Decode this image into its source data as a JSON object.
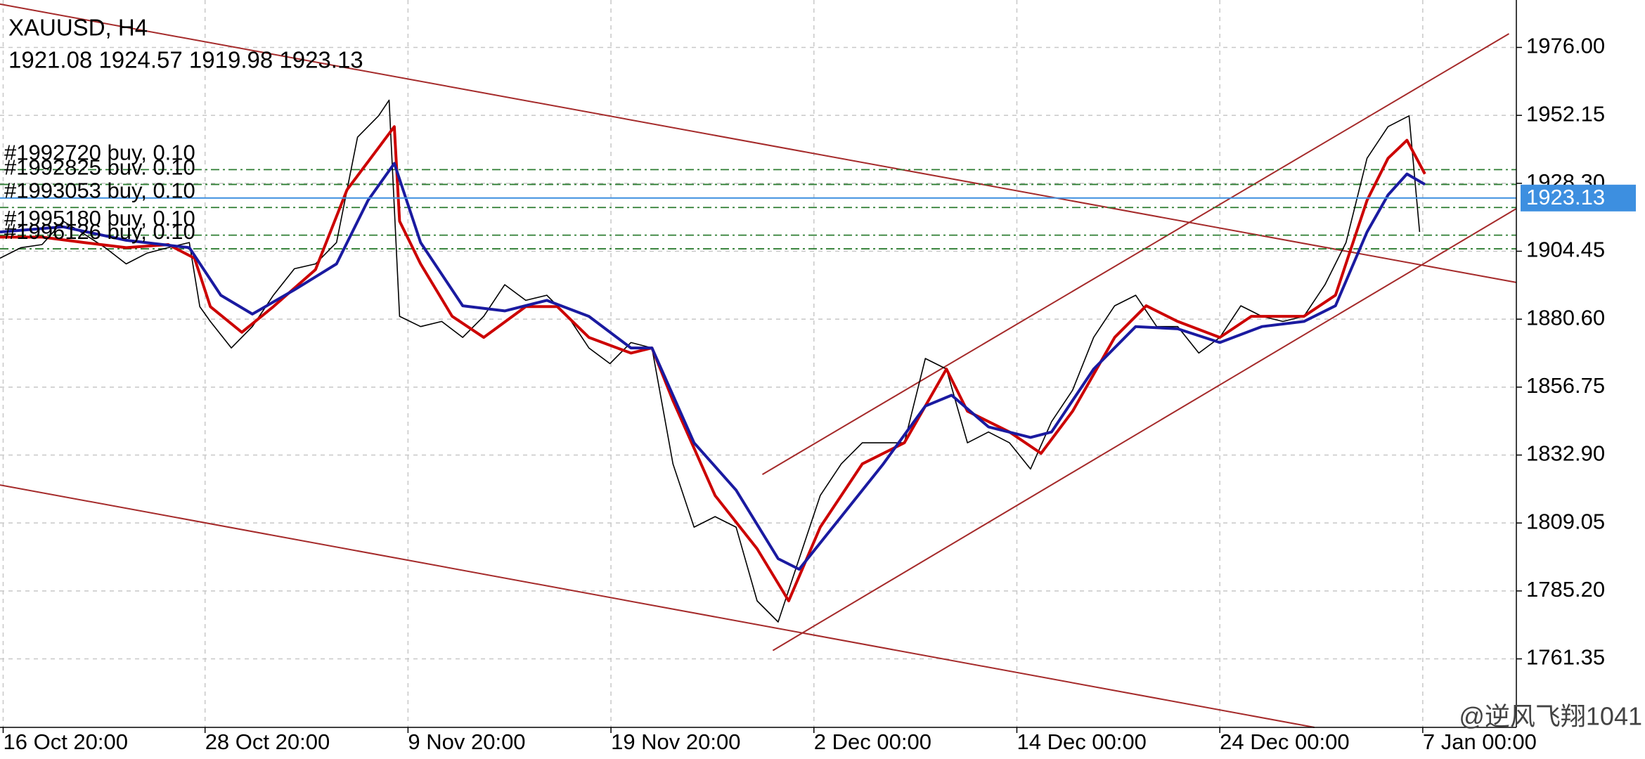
{
  "chart_data": {
    "type": "line",
    "title": "XAUUSD, H4",
    "subtitle": "1921.08 1924.57 1919.98 1923.13",
    "xlim": [
      0,
      144.2
    ],
    "xticks": [
      {
        "value": 0.3,
        "label": "16 Oct 20:00"
      },
      {
        "value": 19.5,
        "label": "28 Oct 20:00"
      },
      {
        "value": 38.8,
        "label": "9 Nov 20:00"
      },
      {
        "value": 58.1,
        "label": "19 Nov 20:00"
      },
      {
        "value": 77.4,
        "label": "2 Dec 00:00"
      },
      {
        "value": 96.7,
        "label": "14 Dec 00:00"
      },
      {
        "value": 116,
        "label": "24 Dec 00:00"
      },
      {
        "value": 135.3,
        "label": "7 Jan 00:00"
      }
    ],
    "ylim": [
      1737.3,
      1992.65
    ],
    "yticks": [
      {
        "value": 1976,
        "label": "1976.00"
      },
      1952.15,
      {
        "value": 1928.3,
        "label": "1928.30"
      },
      1904.45,
      {
        "value": 1880.6,
        "label": "1880.60"
      },
      1856.75,
      {
        "value": 1832.9,
        "label": "1832.90"
      },
      1809.05,
      {
        "value": 1785.2,
        "label": "1785.20"
      },
      1761.35
    ],
    "grid": true,
    "series": [
      {
        "color": "#000000",
        "x": [
          0,
          2,
          4,
          6,
          8,
          10,
          12,
          14,
          16,
          18,
          19,
          20,
          22,
          24,
          26,
          28,
          30,
          32,
          34,
          36,
          37,
          38,
          40,
          42,
          44,
          46,
          48,
          50,
          52,
          54,
          56,
          58,
          60,
          62,
          64,
          66,
          68,
          70,
          72,
          74,
          76,
          78,
          80,
          82,
          84,
          86,
          88,
          90,
          92,
          94,
          96,
          98,
          100,
          102,
          104,
          106,
          108,
          110,
          112,
          114,
          116,
          118,
          120,
          122,
          124,
          126,
          128,
          130,
          132,
          134,
          135
        ],
        "values": [
          1902,
          1905.7,
          1906.8,
          1915,
          1910.5,
          1905.7,
          1900,
          1903.8,
          1905.7,
          1907.5,
          1885,
          1879.8,
          1870.5,
          1878,
          1889,
          1898.3,
          1900,
          1907.5,
          1944.5,
          1952,
          1957.5,
          1881.6,
          1878,
          1879.8,
          1874.2,
          1881.6,
          1892.7,
          1887.2,
          1889,
          1881.6,
          1870.5,
          1865,
          1872.4,
          1870.5,
          1829.8,
          1807.6,
          1811.3,
          1807.6,
          1781.7,
          1774.3,
          1796.5,
          1818.7,
          1829.8,
          1837.2,
          1837.2,
          1837.2,
          1866.8,
          1863.1,
          1837.2,
          1841,
          1837.2,
          1828,
          1844.6,
          1855.7,
          1874.2,
          1885.3,
          1889,
          1878,
          1878,
          1868.7,
          1874.2,
          1885.3,
          1881.6,
          1879.8,
          1881.6,
          1892.7,
          1907.5,
          1937.1,
          1948.2,
          1952,
          1911.2
        ]
      },
      {
        "color": "#cc0000",
        "x": [
          0,
          4,
          8,
          12,
          16,
          18.5,
          20,
          23,
          26,
          30,
          33,
          36,
          37.5,
          38,
          40,
          43,
          46,
          50,
          53,
          56,
          60,
          62,
          64,
          68,
          72,
          75,
          78,
          82,
          86,
          90,
          92,
          96,
          99,
          102,
          106,
          109,
          112,
          116,
          119,
          124,
          127,
          130,
          132,
          133.8,
          135.5
        ],
        "values": [
          1909.4,
          1909.4,
          1907.5,
          1905.7,
          1906.8,
          1902,
          1885,
          1876,
          1885,
          1898,
          1926,
          1940.8,
          1948.2,
          1915,
          1900,
          1881.6,
          1874.2,
          1885,
          1885,
          1874.2,
          1868.7,
          1870.5,
          1852,
          1818.7,
          1800,
          1781.7,
          1807.6,
          1829.8,
          1837.2,
          1863.1,
          1848.3,
          1841,
          1833.5,
          1848.3,
          1874.2,
          1885.3,
          1879.8,
          1874.2,
          1881.6,
          1881.6,
          1889,
          1922.3,
          1937.1,
          1943.4,
          1931.6
        ]
      },
      {
        "color": "#1a1aa0",
        "x": [
          0,
          6,
          12,
          18,
          21,
          24,
          28,
          32,
          35,
          37.5,
          40,
          44,
          48,
          52,
          56,
          60,
          62,
          66,
          70,
          74,
          76,
          80,
          84,
          88,
          90.5,
          94,
          98,
          100,
          104,
          108,
          112,
          116,
          120,
          124,
          127,
          130,
          132,
          133.8,
          135.5
        ],
        "values": [
          1911.2,
          1913,
          1908.3,
          1905.7,
          1889,
          1882.4,
          1890.9,
          1900,
          1922.3,
          1935.3,
          1907.5,
          1885.3,
          1883.5,
          1887.2,
          1881.6,
          1870.5,
          1870.5,
          1837.2,
          1820.6,
          1796.5,
          1792.8,
          1811.3,
          1829.8,
          1850.1,
          1853.9,
          1842.8,
          1839.1,
          1841,
          1863.1,
          1878,
          1877.2,
          1872.4,
          1878,
          1879.8,
          1885.3,
          1911.2,
          1924.2,
          1931.6,
          1927.9
        ]
      }
    ],
    "trendlines": [
      {
        "color": "#a52a2a",
        "x": [
          0,
          144.2
        ],
        "values": [
          1991.2,
          1893.5
        ]
      },
      {
        "color": "#a52a2a",
        "x": [
          0,
          125
        ],
        "values": [
          1822.4,
          1737.3
        ]
      },
      {
        "color": "#a52a2a",
        "x": [
          72.5,
          143.5
        ],
        "values": [
          1826.1,
          1980.8
        ]
      },
      {
        "color": "#a52a2a",
        "x": [
          73.5,
          144.2
        ],
        "values": [
          1764.3,
          1919.4
        ]
      }
    ],
    "orders": [
      {
        "value": 1933.1,
        "label": "#1992720 buy, 0.10"
      },
      {
        "value": 1927.9,
        "label": "#1992825 buv. 0.10"
      },
      {
        "value": 1919.8,
        "label": "#1993053 buy, 0.10"
      },
      {
        "value": 1910.1,
        "label": "#1995180 buy, 0.10"
      },
      {
        "value": 1905.3,
        "label": "#1996126 buy, 0.10"
      }
    ],
    "order_color": "#2e7d32",
    "price_line": {
      "value": 1923.13,
      "color": "#3d8fe0"
    },
    "watermark": "@逆风飞翔1041"
  }
}
